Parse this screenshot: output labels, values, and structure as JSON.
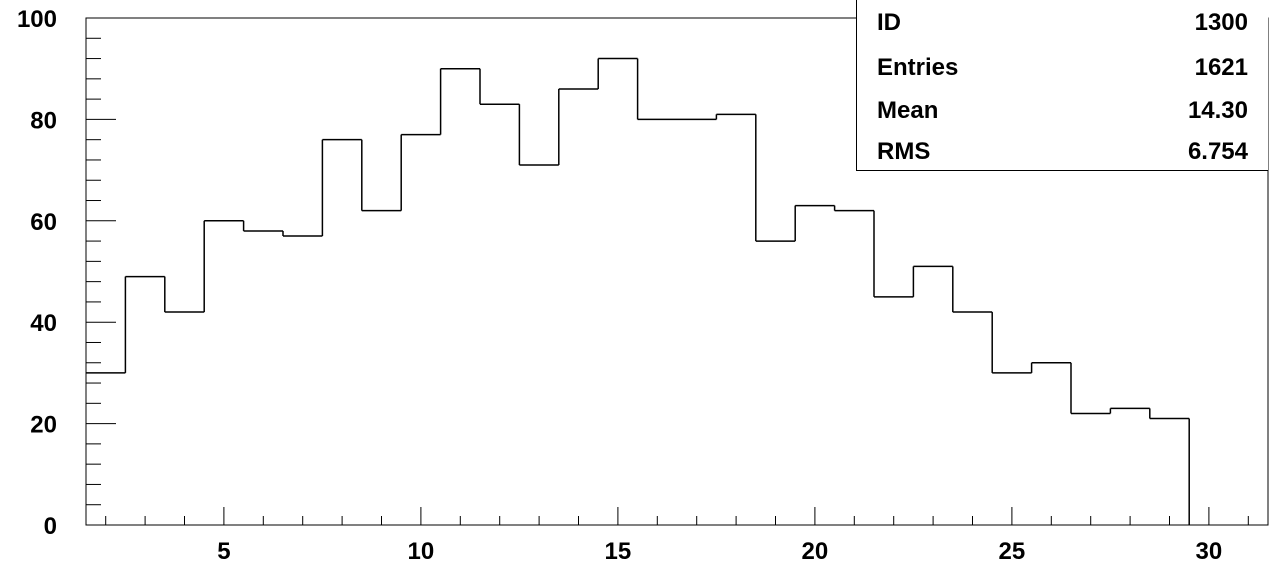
{
  "chart_data": {
    "type": "histogram",
    "title": "",
    "xlabel": "",
    "ylabel": "",
    "bin_edges": [
      1.5,
      2.5,
      3.5,
      4.5,
      5.5,
      6.5,
      7.5,
      8.5,
      9.5,
      10.5,
      11.5,
      12.5,
      13.5,
      14.5,
      15.5,
      16.5,
      17.5,
      18.5,
      19.5,
      20.5,
      21.5,
      22.5,
      23.5,
      24.5,
      25.5,
      26.5,
      27.5,
      28.5,
      29.5,
      30.5,
      31.5
    ],
    "values": [
      30,
      49,
      42,
      60,
      58,
      57,
      76,
      62,
      77,
      90,
      83,
      71,
      86,
      92,
      80,
      80,
      81,
      56,
      63,
      62,
      45,
      51,
      42,
      30,
      32,
      22,
      23,
      21,
      0,
      0
    ],
    "xlim": [
      1.5,
      31.5
    ],
    "ylim": [
      0,
      100
    ],
    "x_major_ticks": [
      5,
      10,
      15,
      20,
      25,
      30
    ],
    "x_tick_labels": [
      "5",
      "10",
      "15",
      "20",
      "25",
      "30"
    ],
    "y_major_ticks": [
      0,
      20,
      40,
      60,
      80,
      100
    ],
    "y_tick_labels": [
      "0",
      "20",
      "40",
      "60",
      "80",
      "100"
    ],
    "grid": false,
    "line_color": "#000000"
  },
  "stats": {
    "rows": [
      {
        "key": "ID",
        "value": "1300"
      },
      {
        "key": "Entries",
        "value": "1621"
      },
      {
        "key": "Mean",
        "value": "14.30"
      },
      {
        "key": "RMS",
        "value": "6.754"
      }
    ]
  }
}
